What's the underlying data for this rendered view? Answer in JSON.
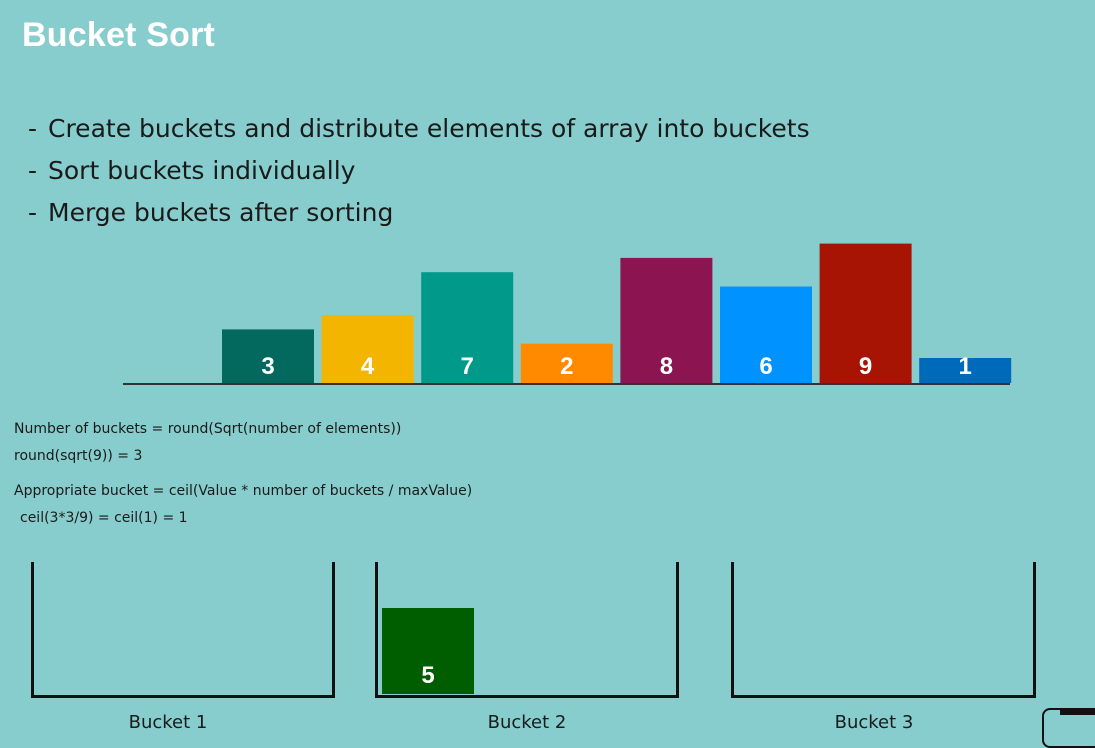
{
  "title": "Bucket Sort",
  "bullets": [
    "Create buckets and distribute elements of array into buckets",
    "Sort buckets individually",
    "Merge buckets after sorting"
  ],
  "chart_data": {
    "type": "bar",
    "categories": [
      "3",
      "4",
      "7",
      "2",
      "8",
      "6",
      "9",
      "1"
    ],
    "values": [
      3,
      4,
      7,
      2,
      8,
      6,
      9,
      1
    ],
    "colors": [
      "#03695e",
      "#f4b500",
      "#019a8a",
      "#ff8a00",
      "#8c1551",
      "#0093ff",
      "#a81404",
      "#006aba"
    ],
    "title": "",
    "xlabel": "",
    "ylabel": "",
    "ylim": [
      0,
      9
    ]
  },
  "formulas": {
    "line1": "Number of buckets = round(Sqrt(number of elements))",
    "line2": "round(sqrt(9)) = 3",
    "line3": "Appropriate bucket = ceil(Value * number of buckets / maxValue)",
    "line4": "ceil(3*3/9) = ceil(1) = 1"
  },
  "buckets": [
    {
      "label": "Bucket 1",
      "items": []
    },
    {
      "label": "Bucket 2",
      "items": [
        {
          "value": "5",
          "color": "#005e00"
        }
      ]
    },
    {
      "label": "Bucket 3",
      "items": []
    }
  ]
}
